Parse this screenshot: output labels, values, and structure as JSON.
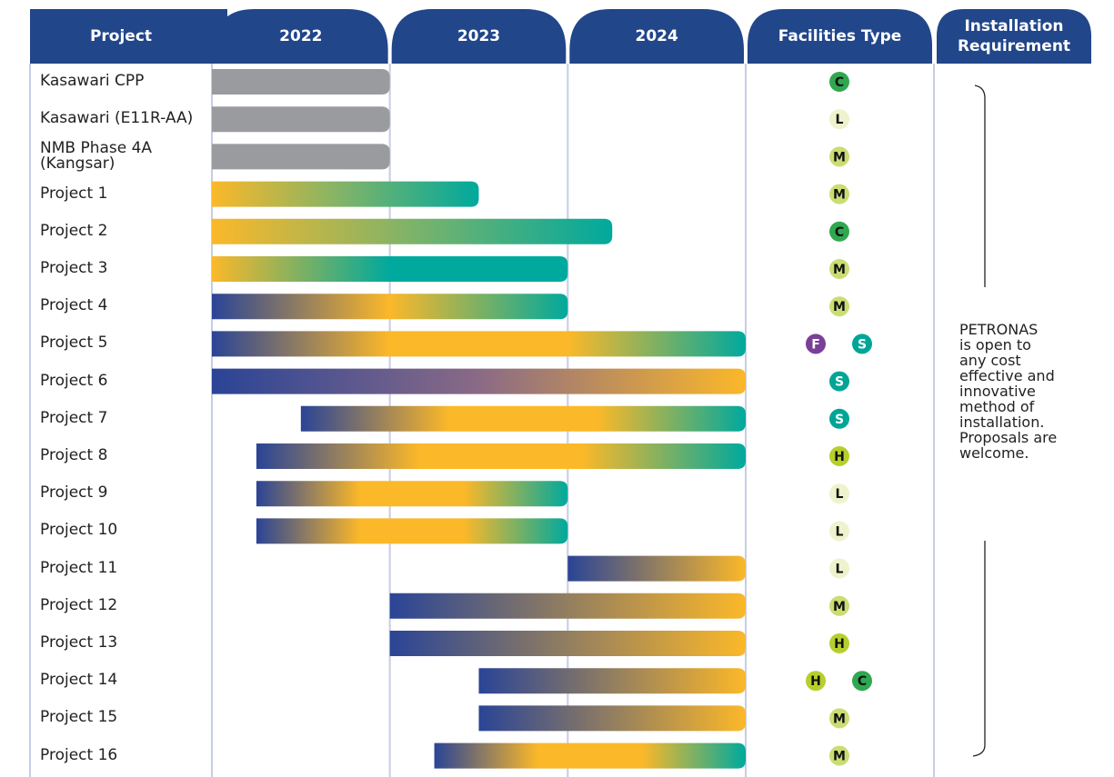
{
  "chart_data": {
    "type": "gantt",
    "headers": {
      "project": "Project",
      "facilities": "Facilities Type",
      "installation": "Installation\nRequirement"
    },
    "years": [
      2022,
      2023,
      2024
    ],
    "xlim": [
      2022,
      2025
    ],
    "header_color": "#21468a",
    "grid_color": "#c6cce4",
    "facility_colors": {
      "C": {
        "fill": "#2fa84f",
        "text": "#111111"
      },
      "L": {
        "fill": "#eef3cd",
        "text": "#111111"
      },
      "M": {
        "fill": "#cadd72",
        "text": "#111111"
      },
      "S": {
        "fill": "#00a597",
        "text": "#ffffff"
      },
      "H": {
        "fill": "#b7cf2c",
        "text": "#111111"
      },
      "F": {
        "fill": "#7a3f97",
        "text": "#ffffff"
      }
    },
    "note": "PETRONAS\nis open to\nany cost\neffective and\ninnovative\nmethod of\ninstallation.\nProposals are\nwelcome.",
    "tasks": [
      {
        "name": "Kasawari CPP",
        "start": 2022,
        "end": 2023,
        "colors": [
          "#9a9b9f",
          "#9a9b9f"
        ],
        "facilities": [
          "C"
        ]
      },
      {
        "name": "Kasawari (E11R-AA)",
        "start": 2022,
        "end": 2023,
        "colors": [
          "#9a9b9f",
          "#9a9b9f"
        ],
        "facilities": [
          "L"
        ]
      },
      {
        "name": "NMB Phase 4A\n(Kangsar)",
        "start": 2022,
        "end": 2023,
        "colors": [
          "#9a9b9f",
          "#9a9b9f"
        ],
        "facilities": [
          "M"
        ]
      },
      {
        "name": "Project 1",
        "start": 2022,
        "end": 2023.5,
        "colors": [
          "#fbb829",
          "#7db36a",
          "#00a99d"
        ],
        "facilities": [
          "M"
        ]
      },
      {
        "name": "Project 2",
        "start": 2022,
        "end": 2024.25,
        "colors": [
          "#fbb829",
          "#7db36a",
          "#00a99d"
        ],
        "facilities": [
          "C"
        ]
      },
      {
        "name": "Project 3",
        "start": 2022,
        "end": 2024,
        "colors": [
          "#fbb829",
          "#00a99d",
          "#00a99d"
        ],
        "facilities": [
          "M"
        ]
      },
      {
        "name": "Project 4",
        "start": 2022,
        "end": 2024,
        "colors": [
          "#2a4496",
          "#fbb829",
          "#00a99d"
        ],
        "facilities": [
          "M"
        ]
      },
      {
        "name": "Project 5",
        "start": 2022,
        "end": 2025,
        "colors": [
          "#2a4496",
          "#fbb829",
          "#fbb829",
          "#00a99d"
        ],
        "facilities": [
          "F",
          "S"
        ]
      },
      {
        "name": "Project 6",
        "start": 2022,
        "end": 2025,
        "colors": [
          "#2a4496",
          "#8a6a86",
          "#fbb829"
        ],
        "facilities": [
          "S"
        ]
      },
      {
        "name": "Project 7",
        "start": 2022.5,
        "end": 2025,
        "colors": [
          "#2a4496",
          "#fbb829",
          "#fbb829",
          "#00a99d"
        ],
        "facilities": [
          "S"
        ]
      },
      {
        "name": "Project 8",
        "start": 2022.25,
        "end": 2025,
        "colors": [
          "#2a4496",
          "#fbb829",
          "#fbb829",
          "#00a99d"
        ],
        "facilities": [
          "H"
        ]
      },
      {
        "name": "Project 9",
        "start": 2022.25,
        "end": 2024,
        "colors": [
          "#2a4496",
          "#fbb829",
          "#fbb829",
          "#00a99d"
        ],
        "facilities": [
          "L"
        ]
      },
      {
        "name": "Project 10",
        "start": 2022.25,
        "end": 2024,
        "colors": [
          "#2a4496",
          "#fbb829",
          "#fbb829",
          "#00a99d"
        ],
        "facilities": [
          "L"
        ]
      },
      {
        "name": "Project 11",
        "start": 2024,
        "end": 2025,
        "colors": [
          "#2a4496",
          "#fbb829"
        ],
        "facilities": [
          "L"
        ]
      },
      {
        "name": "Project 12",
        "start": 2023,
        "end": 2025,
        "colors": [
          "#2a4496",
          "#fbb829"
        ],
        "facilities": [
          "M"
        ]
      },
      {
        "name": "Project 13",
        "start": 2023,
        "end": 2025,
        "colors": [
          "#2a4496",
          "#fbb829"
        ],
        "facilities": [
          "H"
        ]
      },
      {
        "name": "Project 14",
        "start": 2023.5,
        "end": 2025,
        "colors": [
          "#2a4496",
          "#fbb829"
        ],
        "facilities": [
          "H",
          "C"
        ]
      },
      {
        "name": "Project 15",
        "start": 2023.5,
        "end": 2025,
        "colors": [
          "#2a4496",
          "#fbb829"
        ],
        "facilities": [
          "M"
        ]
      },
      {
        "name": "Project 16",
        "start": 2023.25,
        "end": 2025,
        "colors": [
          "#2a4496",
          "#fbb829",
          "#fbb829",
          "#00a99d"
        ],
        "facilities": [
          "M"
        ]
      }
    ]
  }
}
